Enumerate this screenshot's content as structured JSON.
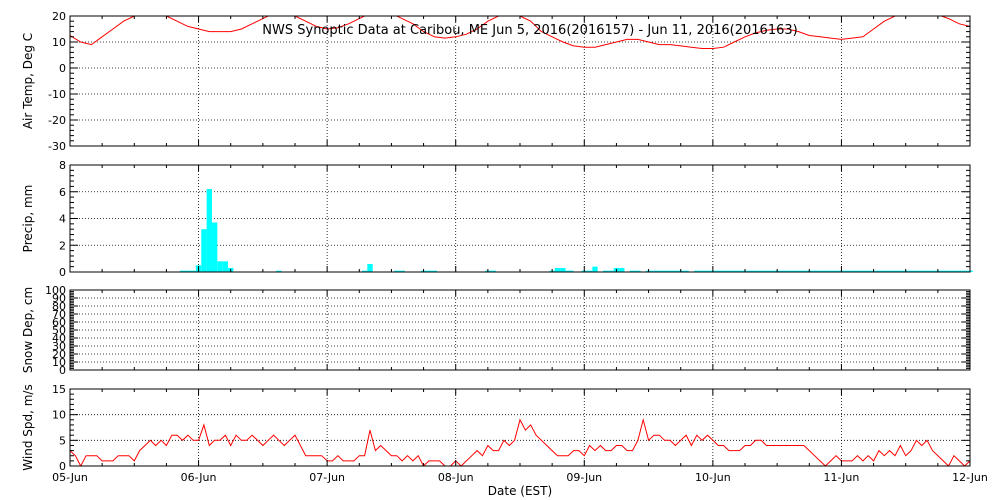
{
  "chart_data": {
    "title": "NWS Synoptic Data at Caribou, ME   Jun  5, 2016(2016157) - Jun 11, 2016(2016163)",
    "xlabel": "Date (EST)",
    "x_ticks": [
      "05-Jun",
      "06-Jun",
      "07-Jun",
      "08-Jun",
      "09-Jun",
      "10-Jun",
      "11-Jun",
      "12-Jun"
    ],
    "x_unit": "hours since 05-Jun 00:00",
    "xlim": [
      0,
      168
    ],
    "panels": [
      {
        "id": "air-temp",
        "type": "line",
        "ylabel": "Air Temp, Deg C",
        "ylim": [
          -30,
          20
        ],
        "yticks": [
          -30,
          -20,
          -10,
          0,
          10,
          20
        ],
        "color": "#ff0000",
        "x": [
          0,
          2,
          4,
          6,
          8,
          10,
          12,
          14,
          16,
          18,
          20,
          22,
          24,
          26,
          28,
          30,
          32,
          34,
          36,
          38,
          40,
          42,
          44,
          46,
          48,
          50,
          52,
          54,
          56,
          58,
          60,
          62,
          64,
          66,
          68,
          70,
          72,
          74,
          76,
          78,
          80,
          82,
          84,
          86,
          88,
          90,
          92,
          94,
          96,
          98,
          100,
          102,
          104,
          106,
          108,
          110,
          112,
          114,
          116,
          118,
          120,
          122,
          124,
          126,
          128,
          130,
          132,
          134,
          136,
          138,
          140,
          142,
          144,
          146,
          148,
          150,
          152,
          154,
          156,
          158,
          160,
          162,
          164,
          166,
          168
        ],
        "values": [
          12.5,
          10,
          9,
          12,
          15,
          18,
          20,
          21,
          21,
          20,
          18,
          16,
          15,
          14,
          14,
          14,
          15,
          17,
          19,
          21,
          21,
          20,
          18,
          16,
          15,
          15.5,
          17,
          19,
          21,
          21.5,
          21,
          19,
          17,
          14,
          12,
          11.5,
          12,
          13,
          15,
          18,
          20,
          21,
          20,
          18,
          14,
          12,
          10,
          8.5,
          8,
          8,
          9,
          10,
          11,
          11,
          10,
          9,
          9,
          8.5,
          8,
          7.5,
          7.5,
          8,
          10,
          12,
          13.5,
          14.5,
          15,
          15,
          14,
          12.5,
          12,
          11.5,
          11,
          11.5,
          12,
          15,
          18,
          20,
          21,
          21,
          21,
          20.5,
          19,
          17,
          16
        ]
      },
      {
        "id": "precip",
        "type": "bar",
        "ylabel": "Precip, mm",
        "ylim": [
          0,
          8
        ],
        "yticks": [
          0,
          2,
          4,
          6,
          8
        ],
        "color": "#00ffff",
        "bar_hours": 1,
        "x": [
          21,
          22,
          23,
          24,
          25,
          26,
          27,
          28,
          29,
          30,
          39,
          55,
          56,
          61,
          62,
          66,
          67,
          68,
          78,
          79,
          90,
          91,
          92,
          93,
          93.5,
          96,
          97,
          98,
          100,
          101,
          102,
          103,
          105,
          106,
          108,
          109,
          110,
          111,
          112,
          113,
          114,
          115,
          117,
          118,
          119,
          120,
          121,
          122,
          123,
          124,
          125,
          126,
          127,
          128,
          129,
          130,
          131,
          132,
          133,
          134,
          135,
          136,
          137,
          138,
          139,
          140,
          141,
          142,
          143,
          144,
          145,
          146,
          147,
          148,
          149,
          150,
          151,
          152,
          153,
          154,
          155,
          156,
          157,
          158,
          159,
          160,
          161,
          162,
          163,
          164,
          165,
          166,
          167,
          168
        ],
        "values": [
          0.1,
          0.1,
          0.1,
          0.5,
          3.2,
          6.2,
          3.7,
          0.8,
          0.8,
          0.3,
          0.1,
          0.1,
          0.6,
          0.1,
          0.1,
          0.1,
          0.1,
          0.1,
          0.1,
          0.1,
          0.1,
          0.3,
          0.3,
          0.1,
          0.1,
          0.1,
          0.1,
          0.4,
          0.1,
          0.1,
          0.3,
          0.3,
          0.1,
          0.1,
          0.1,
          0.1,
          0.1,
          0.1,
          0.1,
          0.1,
          0.1,
          0.1,
          0.1,
          0.1,
          0.1,
          0.1,
          0.1,
          0.1,
          0.1,
          0.1,
          0.1,
          0.1,
          0.1,
          0.1,
          0.1,
          0.1,
          0.1,
          0.1,
          0.1,
          0.1,
          0.1,
          0.1,
          0.1,
          0.1,
          0.1,
          0.1,
          0.1,
          0.1,
          0.1,
          0.1,
          0.1,
          0.1,
          0.1,
          0.1,
          0.1,
          0.1,
          0.1,
          0.1,
          0.1,
          0.1,
          0.1,
          0.1,
          0.1,
          0.1,
          0.1,
          0.1,
          0.1,
          0.1,
          0.1,
          0.1,
          0.1,
          0.1,
          0.1,
          0.1
        ]
      },
      {
        "id": "snow-depth",
        "type": "line",
        "ylabel": "Snow Dep, cm",
        "ylim": [
          0,
          100
        ],
        "yticks": [
          0,
          10,
          20,
          30,
          40,
          50,
          60,
          70,
          80,
          90,
          100
        ],
        "color": "#ff0000",
        "x": [],
        "values": []
      },
      {
        "id": "wind-speed",
        "type": "line",
        "ylabel": "Wind Spd, m/s",
        "ylim": [
          0,
          15
        ],
        "yticks": [
          0,
          5,
          10,
          15
        ],
        "color": "#ff0000",
        "x": [
          0,
          1,
          2,
          3,
          4,
          5,
          6,
          7,
          8,
          9,
          10,
          11,
          12,
          13,
          14,
          15,
          16,
          17,
          18,
          19,
          20,
          21,
          22,
          23,
          24,
          25,
          26,
          27,
          28,
          29,
          30,
          31,
          32,
          33,
          34,
          35,
          36,
          37,
          38,
          39,
          40,
          41,
          42,
          43,
          44,
          45,
          46,
          47,
          48,
          49,
          50,
          51,
          52,
          53,
          54,
          55,
          56,
          57,
          58,
          59,
          60,
          61,
          62,
          63,
          64,
          65,
          66,
          67,
          68,
          69,
          70,
          71,
          72,
          73,
          74,
          75,
          76,
          77,
          78,
          79,
          80,
          81,
          82,
          83,
          84,
          85,
          86,
          87,
          88,
          89,
          90,
          91,
          92,
          93,
          94,
          95,
          96,
          97,
          98,
          99,
          100,
          101,
          102,
          103,
          104,
          105,
          106,
          107,
          108,
          109,
          110,
          111,
          112,
          113,
          114,
          115,
          116,
          117,
          118,
          119,
          120,
          121,
          122,
          123,
          124,
          125,
          126,
          127,
          128,
          129,
          130,
          131,
          132,
          133,
          134,
          135,
          136,
          137,
          138,
          139,
          140,
          141,
          142,
          143,
          144,
          145,
          146,
          147,
          148,
          149,
          150,
          151,
          152,
          153,
          154,
          155,
          156,
          157,
          158,
          159,
          160,
          161,
          162,
          163,
          164,
          165,
          166,
          167,
          168
        ],
        "values": [
          3,
          2,
          0,
          2,
          2,
          2,
          1,
          1,
          1,
          2,
          2,
          2,
          1,
          3,
          4,
          5,
          4,
          5,
          4,
          6,
          6,
          5,
          6,
          5,
          5,
          8,
          4,
          5,
          5,
          6,
          4,
          6,
          5,
          5,
          6,
          5,
          4,
          5,
          6,
          5,
          4,
          5,
          6,
          4,
          2,
          2,
          2,
          2,
          1,
          1,
          2,
          1,
          1,
          1,
          2,
          2,
          7,
          3,
          4,
          3,
          2,
          2,
          1,
          2,
          1,
          2,
          0,
          1,
          1,
          1,
          0,
          0,
          1,
          0,
          1,
          2,
          3,
          2,
          4,
          3,
          3,
          5,
          4,
          5,
          9,
          7,
          8,
          6,
          5,
          4,
          3,
          2,
          2,
          2,
          3,
          3,
          2,
          4,
          3,
          4,
          3,
          3,
          4,
          4,
          3,
          3,
          5,
          9,
          5,
          6,
          6,
          5,
          5,
          4,
          5,
          6,
          4,
          6,
          5,
          6,
          5,
          4,
          4,
          3,
          3,
          3,
          4,
          4,
          5,
          5,
          4,
          4,
          4,
          4,
          4,
          4,
          4,
          4,
          3,
          2,
          1,
          0,
          1,
          2,
          1,
          1,
          1,
          2,
          1,
          2,
          1,
          3,
          2,
          3,
          2,
          4,
          2,
          3,
          5,
          4,
          5,
          3,
          2,
          1,
          0,
          2,
          1,
          0,
          1
        ]
      }
    ]
  }
}
